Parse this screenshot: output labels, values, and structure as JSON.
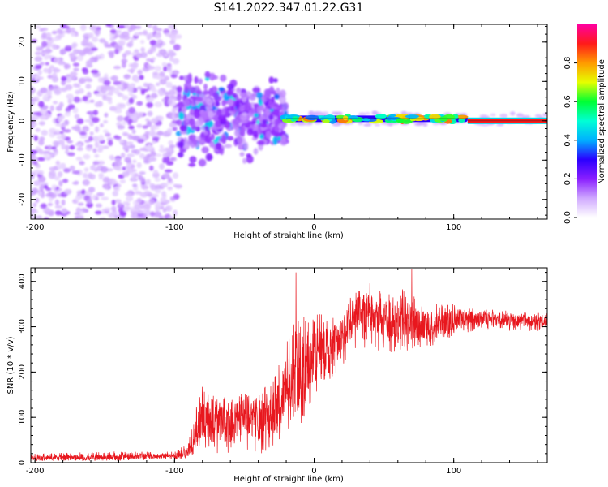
{
  "figure": {
    "title": "S141.2022.347.01.22.G31"
  },
  "chart_data": [
    {
      "type": "heatmap",
      "xlabel": "Height of straight line (km)",
      "ylabel": "Frequency (Hz)",
      "xlim": [
        -203,
        167
      ],
      "ylim": [
        -25,
        24.5
      ],
      "x_ticks": [
        -200,
        -100,
        0,
        100
      ],
      "y_ticks": [
        -20,
        -10,
        0,
        10,
        20
      ],
      "grid": false,
      "legend": "none",
      "colorbar": {
        "label": "Normalized spectral amplitude",
        "range": [
          0,
          1
        ],
        "ticks": [
          0.0,
          0.2,
          0.4,
          0.6,
          0.8
        ],
        "tick_labels": [
          "0.0",
          "0.2",
          "0.4",
          "0.6",
          "0.8"
        ],
        "colors": [
          "#ffffff",
          "#cfa8ff",
          "#8a1fff",
          "#2a00ff",
          "#00b0ff",
          "#00ffd5",
          "#00ff33",
          "#e6ff00",
          "#ff9a00",
          "#ff1a1a",
          "#ff00a0"
        ]
      },
      "regions": [
        {
          "x_range": [
            -203,
            -97
          ],
          "freq_range": [
            -25,
            24.5
          ],
          "amplitude": 0.03,
          "description": "diffuse noise"
        },
        {
          "x_range": [
            -97,
            -20
          ],
          "freq_range": [
            -12,
            12
          ],
          "amplitude": 0.12,
          "description": "scattered signal"
        },
        {
          "x_range": [
            -20,
            110
          ],
          "center_freq": 0.5,
          "amplitude": 0.45,
          "description": "carrier band"
        },
        {
          "x_range": [
            110,
            167
          ],
          "center_freq": 0.0,
          "amplitude": 0.9,
          "description": "strong carrier"
        }
      ]
    },
    {
      "type": "line",
      "xlabel": "Height of straight line (km)",
      "ylabel": "SNR (10 * v/v)",
      "xlim": [
        -203,
        167
      ],
      "ylim": [
        0,
        430
      ],
      "x_ticks": [
        -200,
        -100,
        0,
        100
      ],
      "y_ticks": [
        0,
        100,
        200,
        300,
        400
      ],
      "grid": false,
      "legend": "none",
      "color": "#e8171e",
      "series": [
        {
          "x": [
            -200,
            -150,
            -100,
            -90,
            -85,
            -80,
            -70,
            -60,
            -50,
            -40,
            -30,
            -20,
            -15,
            -10,
            0,
            10,
            20,
            30,
            40,
            60,
            80,
            100,
            120,
            140,
            167
          ],
          "y": [
            10,
            12,
            15,
            25,
            60,
            100,
            90,
            80,
            110,
            90,
            100,
            160,
            200,
            180,
            240,
            250,
            280,
            320,
            330,
            310,
            300,
            315,
            320,
            315,
            310
          ],
          "y_band_low": [
            4,
            4,
            6,
            10,
            20,
            30,
            20,
            20,
            30,
            20,
            20,
            60,
            100,
            80,
            150,
            180,
            210,
            250,
            250,
            240,
            250,
            280,
            295,
            290,
            290
          ],
          "y_band_high": [
            20,
            25,
            25,
            45,
            120,
            190,
            150,
            140,
            170,
            150,
            190,
            260,
            330,
            320,
            340,
            320,
            340,
            380,
            380,
            390,
            360,
            350,
            340,
            335,
            330
          ],
          "spikes": [
            {
              "x": -13,
              "y": 420
            },
            {
              "x": 70,
              "y": 428
            },
            {
              "x": 40,
              "y": 395
            }
          ]
        }
      ]
    }
  ]
}
